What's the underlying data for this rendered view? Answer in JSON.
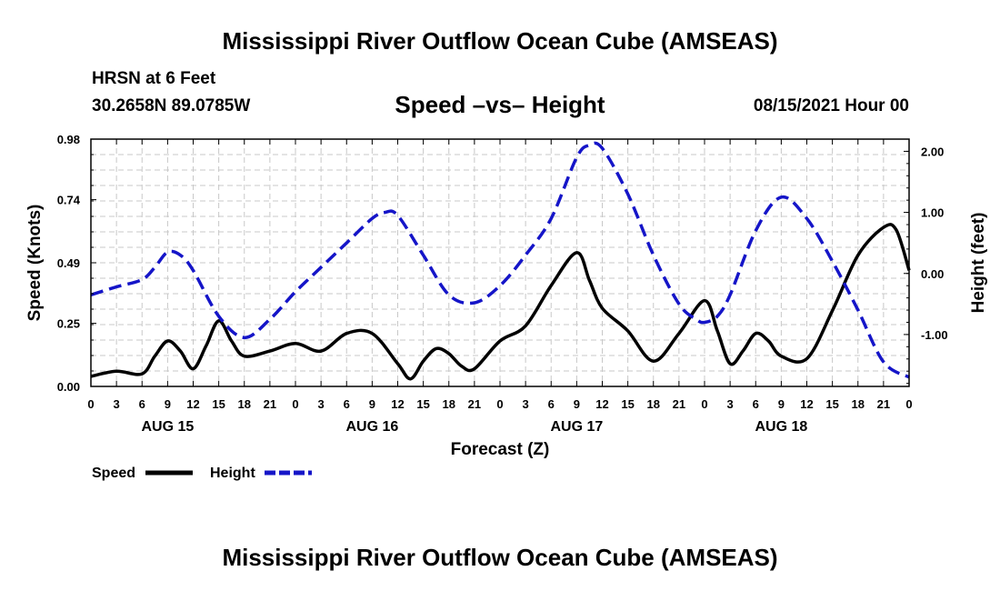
{
  "header": {
    "title": "Mississippi River Outflow Ocean Cube (AMSEAS)",
    "station": "HRSN at 6 Feet",
    "coords": "30.2658N  89.0785W",
    "subtitle": "Speed –vs– Height",
    "datetime": "08/15/2021 Hour 00"
  },
  "footer": {
    "title": "Mississippi River Outflow Ocean Cube (AMSEAS)"
  },
  "chart_data": {
    "type": "line",
    "title": "Speed –vs– Height",
    "xlabel": "Forecast (Z)",
    "ylabel_left": "Speed (Knots)",
    "ylabel_right": "Height (feet)",
    "x_range_hours": [
      0,
      96
    ],
    "x_tick_labels": [
      "0",
      "3",
      "6",
      "9",
      "12",
      "15",
      "18",
      "21",
      "0",
      "3",
      "6",
      "9",
      "12",
      "15",
      "18",
      "21",
      "0",
      "3",
      "6",
      "9",
      "12",
      "15",
      "18",
      "21",
      "0",
      "3",
      "6",
      "9",
      "12",
      "15",
      "18",
      "21",
      "0"
    ],
    "date_labels": [
      {
        "label": "AUG 15",
        "hour": 9
      },
      {
        "label": "AUG 16",
        "hour": 33
      },
      {
        "label": "AUG 17",
        "hour": 57
      },
      {
        "label": "AUG 18",
        "hour": 81
      }
    ],
    "ylim_left": [
      0,
      0.98
    ],
    "left_ticks": [
      "0.00",
      "0.25",
      "0.49",
      "0.74",
      "0.98"
    ],
    "ylim_right": [
      -1.85,
      2.2
    ],
    "right_ticks": [
      "2.00",
      "1.00",
      "0.00",
      "-1.00"
    ],
    "grid": true,
    "series": [
      {
        "name": "Speed",
        "axis": "left",
        "color": "#000000",
        "style": "solid",
        "x": [
          0,
          3,
          6,
          7.5,
          9,
          10.5,
          12,
          13.5,
          15,
          16.5,
          18,
          21,
          24,
          27,
          30,
          33,
          36,
          37.5,
          39,
          40.5,
          42,
          43.5,
          45,
          48,
          51,
          54,
          57,
          58.5,
          60,
          63,
          66,
          69,
          72,
          73.5,
          75,
          76.5,
          78,
          79.5,
          81,
          84,
          87,
          90,
          93,
          94.5,
          96
        ],
        "values": [
          0.04,
          0.06,
          0.05,
          0.12,
          0.18,
          0.14,
          0.07,
          0.16,
          0.26,
          0.18,
          0.12,
          0.14,
          0.17,
          0.14,
          0.21,
          0.21,
          0.09,
          0.03,
          0.1,
          0.15,
          0.13,
          0.08,
          0.07,
          0.18,
          0.24,
          0.4,
          0.53,
          0.42,
          0.31,
          0.22,
          0.1,
          0.21,
          0.34,
          0.22,
          0.09,
          0.14,
          0.21,
          0.18,
          0.12,
          0.11,
          0.3,
          0.52,
          0.63,
          0.62,
          0.46
        ]
      },
      {
        "name": "Height",
        "axis": "right",
        "color": "#1515c8",
        "style": "dashed",
        "x": [
          0,
          3,
          6,
          7.5,
          9,
          10.5,
          12,
          15,
          18,
          21,
          24,
          27,
          30,
          33,
          34.5,
          36,
          39,
          42,
          45,
          48,
          51,
          54,
          57,
          58.5,
          60,
          63,
          66,
          69,
          71,
          72,
          73.5,
          75,
          78,
          81,
          84,
          87,
          90,
          93,
          96
        ],
        "values": [
          -0.35,
          -0.22,
          -0.1,
          0.1,
          0.35,
          0.3,
          0.05,
          -0.7,
          -1.05,
          -0.75,
          -0.3,
          0.1,
          0.5,
          0.9,
          1.0,
          0.95,
          0.3,
          -0.35,
          -0.48,
          -0.2,
          0.3,
          0.9,
          1.9,
          2.1,
          2.05,
          1.3,
          0.3,
          -0.5,
          -0.75,
          -0.8,
          -0.7,
          -0.35,
          0.7,
          1.25,
          0.9,
          0.2,
          -0.6,
          -1.45,
          -1.7
        ]
      }
    ]
  },
  "legend": {
    "speed_label": "Speed",
    "height_label": "Height",
    "speed_color": "#000000",
    "height_color": "#1515c8"
  }
}
